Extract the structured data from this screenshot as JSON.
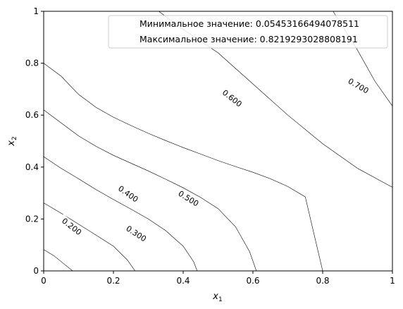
{
  "chart_data": {
    "type": "contour",
    "title": "",
    "xlabel": "x",
    "xlabel_sub": "1",
    "ylabel": "x",
    "ylabel_sub": "2",
    "xlim": [
      0,
      1
    ],
    "ylim": [
      0,
      1
    ],
    "xticks": [
      "0",
      "0.2",
      "0.4",
      "0.6",
      "0.8",
      "1"
    ],
    "yticks": [
      "0",
      "0.2",
      "0.4",
      "0.6",
      "0.8",
      "1"
    ],
    "grid": false,
    "legend_position": "top-right",
    "legend": [
      "Минимальное значение: 0.05453166494078511",
      "Максимальное значение: 0.8219293028808191"
    ],
    "line_color": "#000000",
    "levels": [
      {
        "label": "0.200",
        "label_x": 0.08,
        "label_y": 0.17,
        "label_angle": 38,
        "points": [
          [
            0.0,
            0.082
          ],
          [
            0.03,
            0.058
          ],
          [
            0.06,
            0.025
          ],
          [
            0.083,
            0.0
          ]
        ]
      },
      {
        "label": "0.300",
        "label_x": 0.265,
        "label_y": 0.143,
        "label_angle": 33,
        "points": [
          [
            0.0,
            0.262
          ],
          [
            0.05,
            0.222
          ],
          [
            0.1,
            0.18
          ],
          [
            0.15,
            0.138
          ],
          [
            0.2,
            0.095
          ],
          [
            0.24,
            0.042
          ],
          [
            0.262,
            0.0
          ]
        ]
      },
      {
        "label": "0.400",
        "label_x": 0.242,
        "label_y": 0.296,
        "label_angle": 35,
        "points": [
          [
            0.0,
            0.44
          ],
          [
            0.05,
            0.395
          ],
          [
            0.1,
            0.355
          ],
          [
            0.15,
            0.313
          ],
          [
            0.2,
            0.275
          ],
          [
            0.25,
            0.238
          ],
          [
            0.3,
            0.2
          ],
          [
            0.35,
            0.155
          ],
          [
            0.4,
            0.095
          ],
          [
            0.43,
            0.035
          ],
          [
            0.44,
            0.0
          ]
        ]
      },
      {
        "label": "0.500",
        "label_x": 0.415,
        "label_y": 0.278,
        "label_angle": 32,
        "points": [
          [
            0.0,
            0.62
          ],
          [
            0.05,
            0.57
          ],
          [
            0.1,
            0.52
          ],
          [
            0.15,
            0.48
          ],
          [
            0.2,
            0.445
          ],
          [
            0.25,
            0.415
          ],
          [
            0.3,
            0.385
          ],
          [
            0.35,
            0.353
          ],
          [
            0.4,
            0.32
          ],
          [
            0.45,
            0.283
          ],
          [
            0.5,
            0.24
          ],
          [
            0.55,
            0.17
          ],
          [
            0.59,
            0.075
          ],
          [
            0.61,
            0.0
          ]
        ]
      },
      {
        "label": "0.600",
        "label_x": 0.54,
        "label_y": 0.664,
        "label_angle": 38,
        "points": [
          [
            0.0,
            0.8
          ],
          [
            0.05,
            0.75
          ],
          [
            0.1,
            0.68
          ],
          [
            0.15,
            0.63
          ],
          [
            0.2,
            0.592
          ],
          [
            0.25,
            0.56
          ],
          [
            0.3,
            0.53
          ],
          [
            0.35,
            0.502
          ],
          [
            0.4,
            0.475
          ],
          [
            0.45,
            0.45
          ],
          [
            0.5,
            0.425
          ],
          [
            0.55,
            0.402
          ],
          [
            0.6,
            0.38
          ],
          [
            0.65,
            0.355
          ],
          [
            0.7,
            0.325
          ],
          [
            0.75,
            0.285
          ],
          [
            0.8,
            0.0
          ]
        ]
      },
      {
        "label": "0.700",
        "label_x": 0.902,
        "label_y": 0.712,
        "label_angle": 30,
        "points": [
          [
            0.33,
            1.0
          ],
          [
            0.4,
            0.93
          ],
          [
            0.5,
            0.84
          ],
          [
            0.6,
            0.72
          ],
          [
            0.7,
            0.6
          ],
          [
            0.8,
            0.49
          ],
          [
            0.9,
            0.395
          ],
          [
            1.0,
            0.322
          ]
        ]
      },
      {
        "label": "",
        "label_x": 0,
        "label_y": 0,
        "label_angle": 0,
        "points": [
          [
            0.83,
            1.0
          ],
          [
            0.9,
            0.85
          ],
          [
            0.95,
            0.73
          ],
          [
            1.0,
            0.635
          ]
        ]
      }
    ]
  }
}
